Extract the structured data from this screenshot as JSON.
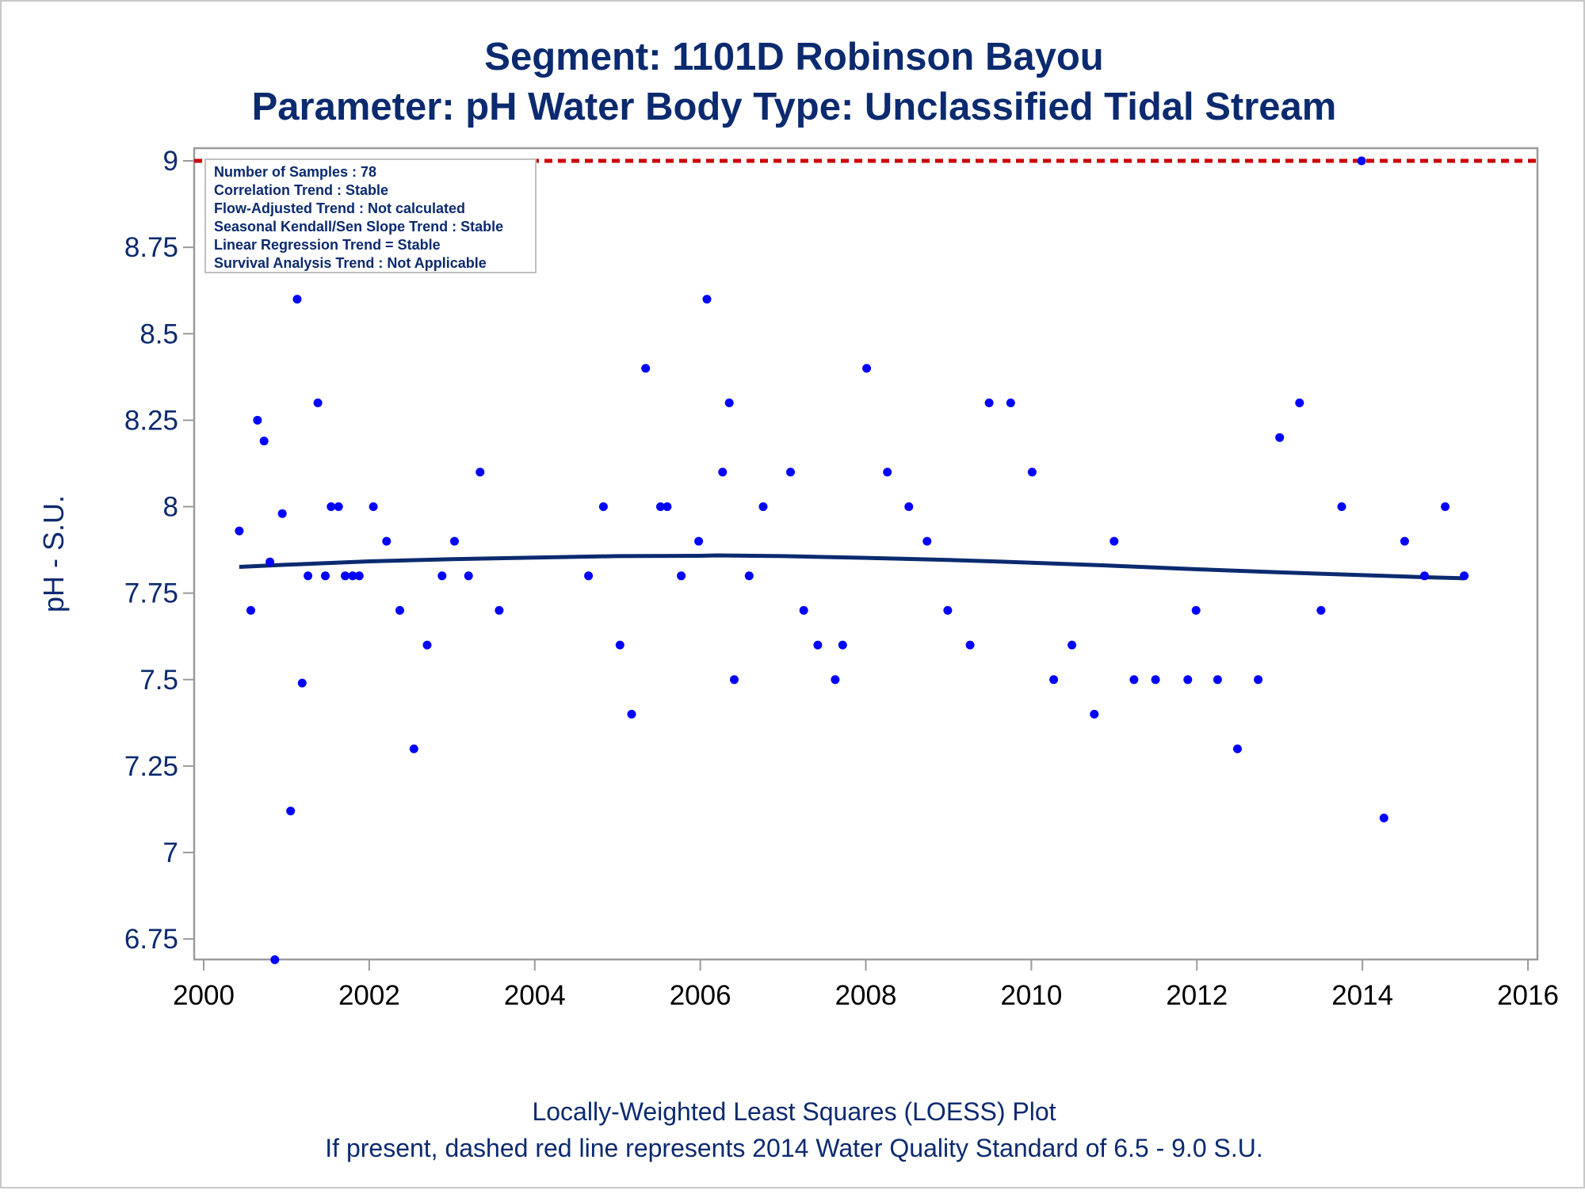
{
  "chart_data": {
    "type": "scatter",
    "title": "Segment: 1101D  Robinson Bayou",
    "subtitle": "Parameter: pH   Water Body Type: Unclassified Tidal Stream",
    "xlabel": "",
    "ylabel": "pH - S.U.",
    "xlim": [
      2000,
      2016
    ],
    "ylim": [
      6.69,
      9.03
    ],
    "x_ticks": [
      "2000",
      "2002",
      "2004",
      "2006",
      "2008",
      "2010",
      "2012",
      "2014",
      "2016"
    ],
    "y_ticks": [
      "6.75",
      "7",
      "7.25",
      "7.5",
      "7.75",
      "8",
      "8.25",
      "8.5",
      "8.75",
      "9"
    ],
    "grid": false,
    "legend_position": "top-left",
    "stats_box": [
      "Number of Samples : 78",
      "Correlation Trend : Stable",
      "Flow-Adjusted Trend : Not calculated",
      "Seasonal Kendall/Sen Slope Trend : Stable",
      "Linear Regression Trend = Stable",
      "Survival Analysis Trend : Not Applicable"
    ],
    "reference_line": {
      "y": 9.0,
      "style": "dashed",
      "color": "#cc0000"
    },
    "point_color": "#0000ff",
    "loess_color": "#0b2a6f",
    "series": [
      {
        "type": "scatter",
        "points": [
          [
            2000.43,
            7.93
          ],
          [
            2000.57,
            7.7
          ],
          [
            2000.65,
            8.25
          ],
          [
            2000.73,
            8.19
          ],
          [
            2000.8,
            7.84
          ],
          [
            2000.86,
            6.69
          ],
          [
            2000.95,
            7.98
          ],
          [
            2001.05,
            7.12
          ],
          [
            2001.13,
            8.6
          ],
          [
            2001.19,
            7.49
          ],
          [
            2001.26,
            7.8
          ],
          [
            2001.38,
            8.3
          ],
          [
            2001.47,
            7.8
          ],
          [
            2001.54,
            8.0
          ],
          [
            2001.63,
            8.0
          ],
          [
            2001.71,
            7.8
          ],
          [
            2001.8,
            7.8
          ],
          [
            2001.88,
            7.8
          ],
          [
            2002.05,
            8.0
          ],
          [
            2002.21,
            7.9
          ],
          [
            2002.37,
            7.7
          ],
          [
            2002.54,
            7.3
          ],
          [
            2002.7,
            7.6
          ],
          [
            2002.88,
            7.8
          ],
          [
            2003.03,
            7.9
          ],
          [
            2003.2,
            7.8
          ],
          [
            2003.34,
            8.1
          ],
          [
            2003.57,
            7.7
          ],
          [
            2004.65,
            7.8
          ],
          [
            2004.83,
            8.0
          ],
          [
            2005.03,
            7.6
          ],
          [
            2005.17,
            7.4
          ],
          [
            2005.34,
            8.4
          ],
          [
            2005.52,
            8.0
          ],
          [
            2005.6,
            8.0
          ],
          [
            2005.77,
            7.8
          ],
          [
            2005.98,
            7.9
          ],
          [
            2006.08,
            8.6
          ],
          [
            2006.27,
            8.1
          ],
          [
            2006.35,
            8.3
          ],
          [
            2006.41,
            7.5
          ],
          [
            2006.59,
            7.8
          ],
          [
            2006.76,
            8.0
          ],
          [
            2007.09,
            8.1
          ],
          [
            2007.25,
            7.7
          ],
          [
            2007.42,
            7.6
          ],
          [
            2007.63,
            7.5
          ],
          [
            2007.72,
            7.6
          ],
          [
            2008.01,
            8.4
          ],
          [
            2008.26,
            8.1
          ],
          [
            2008.52,
            8.0
          ],
          [
            2008.74,
            7.9
          ],
          [
            2008.99,
            7.7
          ],
          [
            2009.26,
            7.6
          ],
          [
            2009.49,
            8.3
          ],
          [
            2009.75,
            8.3
          ],
          [
            2010.01,
            8.1
          ],
          [
            2010.27,
            7.5
          ],
          [
            2010.49,
            7.6
          ],
          [
            2010.76,
            7.4
          ],
          [
            2011.0,
            7.9
          ],
          [
            2011.24,
            7.5
          ],
          [
            2011.5,
            7.5
          ],
          [
            2011.89,
            7.5
          ],
          [
            2011.99,
            7.7
          ],
          [
            2012.25,
            7.5
          ],
          [
            2012.49,
            7.3
          ],
          [
            2012.74,
            7.5
          ],
          [
            2013.0,
            8.2
          ],
          [
            2013.24,
            8.3
          ],
          [
            2013.5,
            7.7
          ],
          [
            2013.75,
            8.0
          ],
          [
            2013.99,
            9.0
          ],
          [
            2014.26,
            7.1
          ],
          [
            2014.51,
            7.9
          ],
          [
            2014.75,
            7.8
          ],
          [
            2015.0,
            8.0
          ],
          [
            2015.23,
            7.8
          ]
        ]
      },
      {
        "type": "line",
        "name": "LOESS",
        "points": [
          [
            2000.43,
            7.826
          ],
          [
            2001.0,
            7.832
          ],
          [
            2002.0,
            7.842
          ],
          [
            2003.0,
            7.848
          ],
          [
            2004.0,
            7.853
          ],
          [
            2005.0,
            7.857
          ],
          [
            2006.0,
            7.858
          ],
          [
            2006.2,
            7.859
          ],
          [
            2007.0,
            7.857
          ],
          [
            2008.0,
            7.852
          ],
          [
            2009.0,
            7.846
          ],
          [
            2010.0,
            7.838
          ],
          [
            2011.0,
            7.829
          ],
          [
            2012.0,
            7.819
          ],
          [
            2013.0,
            7.81
          ],
          [
            2014.0,
            7.802
          ],
          [
            2014.75,
            7.796
          ],
          [
            2015.23,
            7.793
          ]
        ]
      }
    ]
  },
  "footnotes": [
    "Locally-Weighted Least Squares (LOESS) Plot",
    "If present, dashed red line represents 2014 Water Quality Standard of 6.5 - 9.0 S.U."
  ]
}
